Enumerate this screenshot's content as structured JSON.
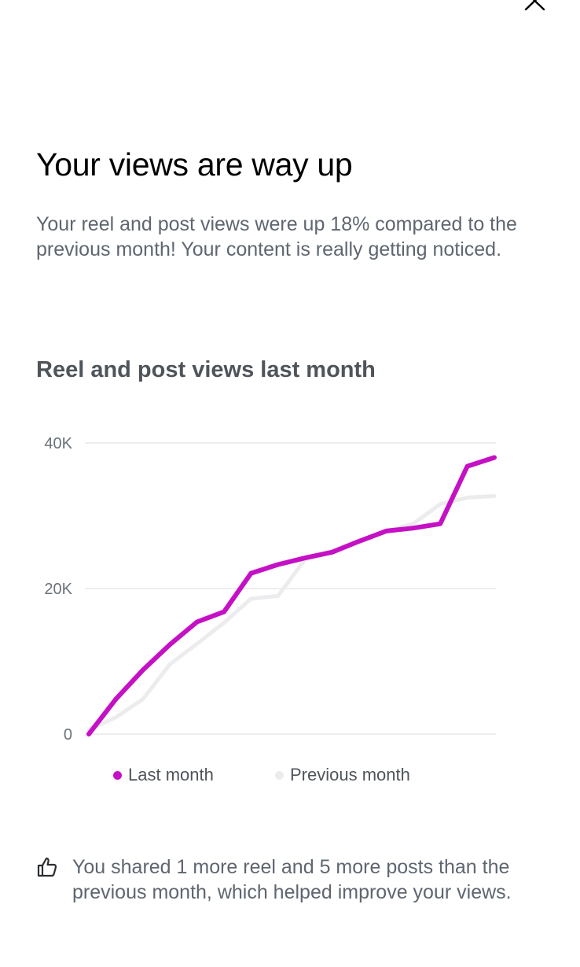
{
  "header": {
    "close_icon": "close-icon"
  },
  "headline": "Your views are way up",
  "description": "Your reel and post views were up 18% compared to the previous month! Your content is really getting noticed.",
  "chart_data": {
    "type": "line",
    "title": "Reel and post views last month",
    "xlabel": "",
    "ylabel": "",
    "ylim": [
      0,
      40000
    ],
    "y_ticks": [
      "0",
      "20K",
      "40K"
    ],
    "y_tick_values": [
      0,
      20000,
      40000
    ],
    "grid": true,
    "legend_position": "bottom",
    "x": [
      1,
      2,
      3,
      4,
      5,
      6,
      7,
      8,
      9,
      10,
      11,
      12,
      13,
      14,
      15,
      16
    ],
    "series": [
      {
        "name": "Last month",
        "color": "#c511c5",
        "values": [
          0,
          4800,
          8800,
          12300,
          15400,
          16800,
          22100,
          23300,
          24200,
          25000,
          26500,
          27900,
          28300,
          28900,
          36800,
          38000
        ]
      },
      {
        "name": "Previous month",
        "color": "#ececee",
        "values": [
          600,
          2300,
          4800,
          9600,
          12400,
          15300,
          18600,
          19000,
          24000,
          25100,
          26600,
          27900,
          28900,
          31600,
          32500,
          32700
        ]
      }
    ]
  },
  "insight": {
    "icon": "thumbs-up-icon",
    "text": "You shared 1 more reel and 5 more posts than the previous month, which helped improve your views."
  }
}
